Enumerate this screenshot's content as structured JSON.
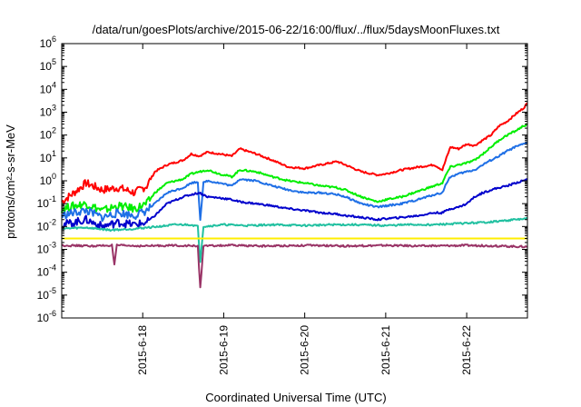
{
  "chart_data": {
    "type": "line",
    "title": "/data/run/goesPlots/archive/2015-06-22/16:00/flux/../flux/5daysMoonFluxes.txt",
    "xlabel": "Coordinated Universal Time (UTC)",
    "ylabel": "protons/cm²-s-sr-MeV",
    "y_scale": "log",
    "ylim": [
      1e-06,
      1000000.0
    ],
    "xlim": [
      0.0,
      5.75
    ],
    "x_unit": "days",
    "x_ticks": [
      {
        "value": 1.0,
        "label": "2015-6-18"
      },
      {
        "value": 2.0,
        "label": "2015-6-19"
      },
      {
        "value": 3.0,
        "label": "2015-6-20"
      },
      {
        "value": 4.0,
        "label": "2015-6-21"
      },
      {
        "value": 5.0,
        "label": "2015-6-22"
      }
    ],
    "y_ticks": [
      {
        "value": 1000000.0,
        "label": "10",
        "exp": "6"
      },
      {
        "value": 100000.0,
        "label": "10",
        "exp": "5"
      },
      {
        "value": 10000.0,
        "label": "10",
        "exp": "4"
      },
      {
        "value": 1000.0,
        "label": "10",
        "exp": "3"
      },
      {
        "value": 100.0,
        "label": "10",
        "exp": "2"
      },
      {
        "value": 10.0,
        "label": "10",
        "exp": "1"
      },
      {
        "value": 1.0,
        "label": "10",
        "exp": "0"
      },
      {
        "value": 0.1,
        "label": "10",
        "exp": "-1"
      },
      {
        "value": 0.01,
        "label": "10",
        "exp": "-2"
      },
      {
        "value": 0.001,
        "label": "10",
        "exp": "-3"
      },
      {
        "value": 0.0001,
        "label": "10",
        "exp": "-4"
      },
      {
        "value": 1e-05,
        "label": "10",
        "exp": "-5"
      },
      {
        "value": 1e-06,
        "label": "10",
        "exp": "-6"
      }
    ],
    "grid": false,
    "legend": "none",
    "series": [
      {
        "color": "#ff0000",
        "points": [
          [
            0,
            0.12
          ],
          [
            0.15,
            0.3
          ],
          [
            0.3,
            0.8
          ],
          [
            0.5,
            0.4
          ],
          [
            0.7,
            0.5
          ],
          [
            0.9,
            0.3
          ],
          [
            1.05,
            0.6
          ],
          [
            1.15,
            2.5
          ],
          [
            1.3,
            5
          ],
          [
            1.5,
            8
          ],
          [
            1.6,
            15
          ],
          [
            1.7,
            12
          ],
          [
            1.8,
            18
          ],
          [
            1.95,
            15
          ],
          [
            2.1,
            12
          ],
          [
            2.2,
            25
          ],
          [
            2.4,
            15
          ],
          [
            2.6,
            8
          ],
          [
            2.8,
            4
          ],
          [
            3.0,
            3.5
          ],
          [
            3.2,
            5
          ],
          [
            3.4,
            7
          ],
          [
            3.5,
            5
          ],
          [
            3.7,
            2.5
          ],
          [
            3.9,
            1.8
          ],
          [
            4.0,
            2
          ],
          [
            4.2,
            3
          ],
          [
            4.4,
            4
          ],
          [
            4.6,
            5
          ],
          [
            4.7,
            3
          ],
          [
            4.75,
            10
          ],
          [
            4.8,
            30
          ],
          [
            4.9,
            25
          ],
          [
            5.0,
            40
          ],
          [
            5.1,
            35
          ],
          [
            5.2,
            60
          ],
          [
            5.3,
            100
          ],
          [
            5.4,
            250
          ],
          [
            5.5,
            400
          ],
          [
            5.6,
            800
          ],
          [
            5.7,
            1500
          ],
          [
            5.75,
            2500
          ]
        ]
      },
      {
        "color": "#00ee00",
        "points": [
          [
            0,
            0.06
          ],
          [
            0.15,
            0.08
          ],
          [
            0.3,
            0.1
          ],
          [
            0.5,
            0.05
          ],
          [
            0.7,
            0.08
          ],
          [
            0.9,
            0.06
          ],
          [
            1.05,
            0.1
          ],
          [
            1.15,
            0.3
          ],
          [
            1.3,
            0.8
          ],
          [
            1.5,
            1.2
          ],
          [
            1.6,
            2
          ],
          [
            1.7,
            2.5
          ],
          [
            1.8,
            3
          ],
          [
            1.95,
            2
          ],
          [
            2.1,
            1.5
          ],
          [
            2.2,
            3
          ],
          [
            2.4,
            2.5
          ],
          [
            2.6,
            1.5
          ],
          [
            2.8,
            1
          ],
          [
            3.0,
            0.8
          ],
          [
            3.2,
            0.6
          ],
          [
            3.4,
            0.5
          ],
          [
            3.5,
            0.4
          ],
          [
            3.7,
            0.2
          ],
          [
            3.9,
            0.12
          ],
          [
            4.0,
            0.15
          ],
          [
            4.2,
            0.2
          ],
          [
            4.4,
            0.35
          ],
          [
            4.6,
            0.6
          ],
          [
            4.7,
            0.8
          ],
          [
            4.75,
            2
          ],
          [
            4.8,
            4
          ],
          [
            4.9,
            5
          ],
          [
            5.0,
            6
          ],
          [
            5.1,
            8
          ],
          [
            5.2,
            15
          ],
          [
            5.3,
            30
          ],
          [
            5.4,
            60
          ],
          [
            5.5,
            100
          ],
          [
            5.6,
            150
          ],
          [
            5.7,
            250
          ],
          [
            5.75,
            300
          ]
        ]
      },
      {
        "color": "#1e6fe6",
        "points": [
          [
            0,
            0.03
          ],
          [
            0.15,
            0.04
          ],
          [
            0.3,
            0.05
          ],
          [
            0.5,
            0.025
          ],
          [
            0.7,
            0.04
          ],
          [
            0.9,
            0.03
          ],
          [
            1.05,
            0.05
          ],
          [
            1.15,
            0.1
          ],
          [
            1.3,
            0.3
          ],
          [
            1.5,
            0.5
          ],
          [
            1.6,
            0.8
          ],
          [
            1.68,
            0.9
          ],
          [
            1.71,
            0.02
          ],
          [
            1.75,
            0.8
          ],
          [
            1.8,
            1
          ],
          [
            1.95,
            0.8
          ],
          [
            2.1,
            0.6
          ],
          [
            2.2,
            1.2
          ],
          [
            2.4,
            1
          ],
          [
            2.6,
            0.6
          ],
          [
            2.8,
            0.4
          ],
          [
            3.0,
            0.3
          ],
          [
            3.2,
            0.3
          ],
          [
            3.4,
            0.25
          ],
          [
            3.5,
            0.2
          ],
          [
            3.7,
            0.1
          ],
          [
            3.9,
            0.07
          ],
          [
            4.0,
            0.08
          ],
          [
            4.2,
            0.1
          ],
          [
            4.4,
            0.15
          ],
          [
            4.6,
            0.25
          ],
          [
            4.7,
            0.3
          ],
          [
            4.75,
            0.8
          ],
          [
            4.8,
            1.5
          ],
          [
            4.9,
            2
          ],
          [
            5.0,
            2.5
          ],
          [
            5.1,
            3
          ],
          [
            5.2,
            5
          ],
          [
            5.3,
            8
          ],
          [
            5.4,
            12
          ],
          [
            5.5,
            20
          ],
          [
            5.6,
            30
          ],
          [
            5.7,
            40
          ],
          [
            5.75,
            50
          ]
        ]
      },
      {
        "color": "#0000cc",
        "points": [
          [
            0,
            0.012
          ],
          [
            0.15,
            0.015
          ],
          [
            0.3,
            0.02
          ],
          [
            0.5,
            0.01
          ],
          [
            0.7,
            0.015
          ],
          [
            0.9,
            0.012
          ],
          [
            1.05,
            0.015
          ],
          [
            1.15,
            0.03
          ],
          [
            1.3,
            0.1
          ],
          [
            1.5,
            0.2
          ],
          [
            1.6,
            0.25
          ],
          [
            1.7,
            0.3
          ],
          [
            1.8,
            0.2
          ],
          [
            1.95,
            0.18
          ],
          [
            2.1,
            0.15
          ],
          [
            2.2,
            0.12
          ],
          [
            2.4,
            0.1
          ],
          [
            2.6,
            0.08
          ],
          [
            2.8,
            0.06
          ],
          [
            3.0,
            0.05
          ],
          [
            3.2,
            0.04
          ],
          [
            3.4,
            0.035
          ],
          [
            3.5,
            0.03
          ],
          [
            3.7,
            0.025
          ],
          [
            3.9,
            0.02
          ],
          [
            4.0,
            0.022
          ],
          [
            4.2,
            0.025
          ],
          [
            4.4,
            0.03
          ],
          [
            4.6,
            0.04
          ],
          [
            4.7,
            0.04
          ],
          [
            4.75,
            0.05
          ],
          [
            4.8,
            0.06
          ],
          [
            4.9,
            0.07
          ],
          [
            5.0,
            0.1
          ],
          [
            5.1,
            0.2
          ],
          [
            5.2,
            0.3
          ],
          [
            5.3,
            0.4
          ],
          [
            5.4,
            0.5
          ],
          [
            5.5,
            0.6
          ],
          [
            5.6,
            0.8
          ],
          [
            5.7,
            1
          ],
          [
            5.75,
            1.2
          ]
        ]
      },
      {
        "color": "#20c0a0",
        "points": [
          [
            0,
            0.008
          ],
          [
            0.3,
            0.009
          ],
          [
            0.6,
            0.007
          ],
          [
            0.9,
            0.008
          ],
          [
            1.05,
            0.009
          ],
          [
            1.2,
            0.01
          ],
          [
            1.4,
            0.012
          ],
          [
            1.6,
            0.012
          ],
          [
            1.68,
            0.01
          ],
          [
            1.71,
            0.0003
          ],
          [
            1.75,
            0.01
          ],
          [
            2.0,
            0.012
          ],
          [
            2.3,
            0.011
          ],
          [
            2.6,
            0.012
          ],
          [
            3.0,
            0.011
          ],
          [
            3.3,
            0.012
          ],
          [
            3.6,
            0.012
          ],
          [
            4.0,
            0.011
          ],
          [
            4.3,
            0.012
          ],
          [
            4.6,
            0.012
          ],
          [
            4.8,
            0.013
          ],
          [
            5.0,
            0.014
          ],
          [
            5.2,
            0.015
          ],
          [
            5.4,
            0.017
          ],
          [
            5.6,
            0.02
          ],
          [
            5.75,
            0.022
          ]
        ]
      },
      {
        "color": "#ffee00",
        "points": [
          [
            0,
            0.003
          ],
          [
            1.0,
            0.003
          ],
          [
            2.0,
            0.003
          ],
          [
            3.0,
            0.003
          ],
          [
            4.0,
            0.003
          ],
          [
            5.0,
            0.003
          ],
          [
            5.75,
            0.003
          ]
        ]
      },
      {
        "color": "#993366",
        "points": [
          [
            0,
            0.0015
          ],
          [
            0.4,
            0.0014
          ],
          [
            0.62,
            0.0015
          ],
          [
            0.65,
            0.0002
          ],
          [
            0.68,
            0.0015
          ],
          [
            1.0,
            0.0014
          ],
          [
            1.4,
            0.0015
          ],
          [
            1.68,
            0.0014
          ],
          [
            1.71,
            2e-05
          ],
          [
            1.75,
            0.0014
          ],
          [
            2.1,
            0.0015
          ],
          [
            2.5,
            0.0014
          ],
          [
            3.0,
            0.0015
          ],
          [
            3.5,
            0.0014
          ],
          [
            4.0,
            0.0015
          ],
          [
            4.5,
            0.0014
          ],
          [
            5.0,
            0.0015
          ],
          [
            5.4,
            0.0014
          ],
          [
            5.75,
            0.0013
          ]
        ]
      }
    ]
  }
}
